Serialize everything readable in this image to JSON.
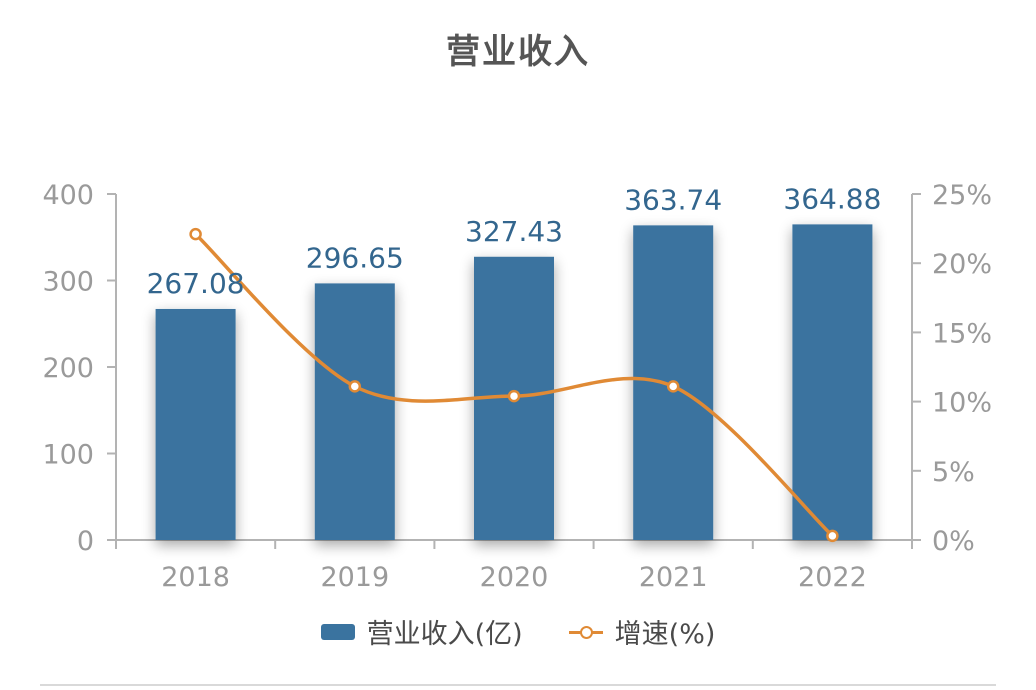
{
  "chart_data": {
    "type": "bar",
    "title": "营业收入",
    "categories": [
      "2018",
      "2019",
      "2020",
      "2021",
      "2022"
    ],
    "series": [
      {
        "name": "营业收入(亿)",
        "type": "bar",
        "axis": "left",
        "values": [
          267.08,
          296.65,
          327.43,
          363.74,
          364.88
        ],
        "labels": [
          "267.08",
          "296.65",
          "327.43",
          "363.74",
          "364.88"
        ]
      },
      {
        "name": "增速(%)",
        "type": "line",
        "axis": "right",
        "smooth": true,
        "values": [
          22.1,
          11.1,
          10.4,
          11.1,
          0.3
        ]
      }
    ],
    "left_axis": {
      "ylim": [
        0,
        400
      ],
      "ticks": [
        0,
        100,
        200,
        300,
        400
      ],
      "tick_labels": [
        "0",
        "100",
        "200",
        "300",
        "400"
      ]
    },
    "right_axis": {
      "ylim": [
        0,
        25
      ],
      "ticks": [
        0,
        5,
        10,
        15,
        20,
        25
      ],
      "tick_labels": [
        "0%",
        "5%",
        "10%",
        "15%",
        "20%",
        "25%"
      ]
    },
    "legend_position": "bottom",
    "grid": false,
    "colors": {
      "bar": "#3a739f",
      "line": "#e08a35",
      "axis": "#b3b3b3",
      "tick_text": "#9a9a9a",
      "bar_label": "#33668e"
    }
  }
}
